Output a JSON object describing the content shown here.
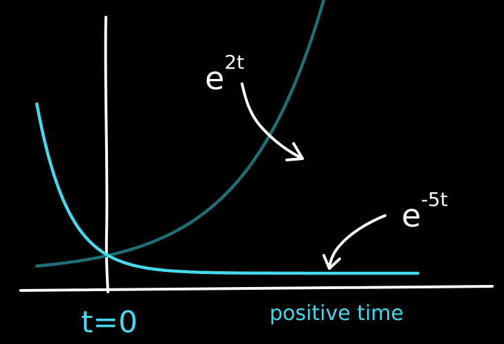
{
  "chart_data": {
    "type": "line",
    "title": "",
    "colors": {
      "background": "#000000",
      "axis": "#ffffff",
      "growth": "#1f6f78",
      "decay": "#46d9ee",
      "label": "#46d9ee"
    },
    "series": [
      {
        "base": "e",
        "exponent": "2t",
        "k": 2
      },
      {
        "base": "e",
        "exponent": "-5t",
        "k": -5
      }
    ],
    "x_range": [
      -0.5,
      1.85
    ],
    "y_range": [
      0,
      14
    ],
    "origin_label": "t=0",
    "x_axis_label": "positive time",
    "grid": false,
    "legend": "none"
  }
}
